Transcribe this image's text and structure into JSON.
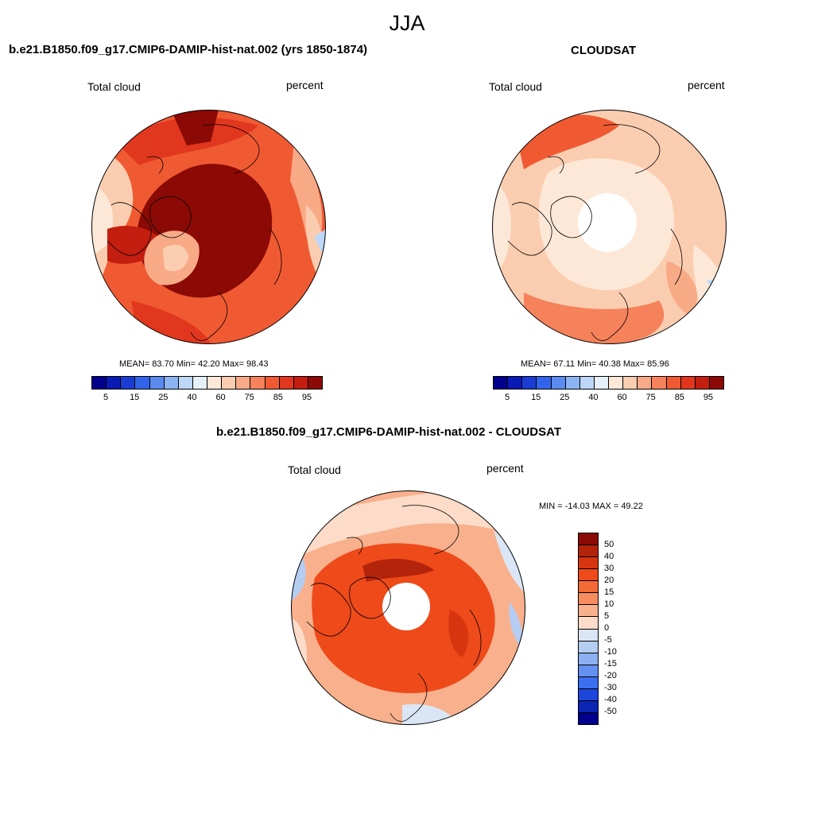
{
  "title": "JJA",
  "panels": [
    {
      "title": "b.e21.B1850.f09_g17.CMIP6-DAMIP-hist-nat.002 (yrs 1850-1874)",
      "left_label": "Total cloud",
      "right_label": "percent",
      "stats": {
        "mean_label": "MEAN=",
        "mean": "83.70",
        "min_label": "Min=",
        "min": "42.20",
        "max_label": "Max=",
        "max": "98.43"
      },
      "colorbar_ticks": [
        "5",
        "15",
        "25",
        "40",
        "60",
        "75",
        "85",
        "95"
      ]
    },
    {
      "title": "CLOUDSAT",
      "left_label": "Total cloud",
      "right_label": "percent",
      "stats": {
        "mean_label": "MEAN=",
        "mean": "67.11",
        "min_label": "Min=",
        "min": "40.38",
        "max_label": "Max=",
        "max": "85.96"
      },
      "colorbar_ticks": [
        "5",
        "15",
        "25",
        "40",
        "60",
        "75",
        "85",
        "95"
      ]
    },
    {
      "title": "b.e21.B1850.f09_g17.CMIP6-DAMIP-hist-nat.002 - CLOUDSAT",
      "left_label": "Total cloud",
      "right_label": "percent",
      "minmax": "MIN = -14.03 MAX =  49.22",
      "colorbar_ticks": [
        "50",
        "40",
        "30",
        "20",
        "15",
        "10",
        "5",
        "0",
        "-5",
        "-10",
        "-15",
        "-20",
        "-30",
        "-40",
        "-50"
      ]
    }
  ],
  "colors": {
    "abs_scale": [
      "#00008c",
      "#0a1ab4",
      "#1a3cd2",
      "#3264eb",
      "#5a8cf0",
      "#8cb4f5",
      "#bed7f8",
      "#e6f0fa",
      "#fde8d8",
      "#fbcdb0",
      "#f8aa87",
      "#f5825a",
      "#f05a32",
      "#e1371e",
      "#c31e0f",
      "#8c0a05"
    ],
    "diff_scale": [
      "#8c0a05",
      "#b4230c",
      "#d7350f",
      "#ee4a1a",
      "#f36a37",
      "#f68c5f",
      "#f9b08c",
      "#fcdcc8",
      "#dae6f6",
      "#b4cdf0",
      "#8cb0f0",
      "#6490f0",
      "#3c6ef0",
      "#1e46dc",
      "#0a24b4",
      "#00008c"
    ]
  }
}
